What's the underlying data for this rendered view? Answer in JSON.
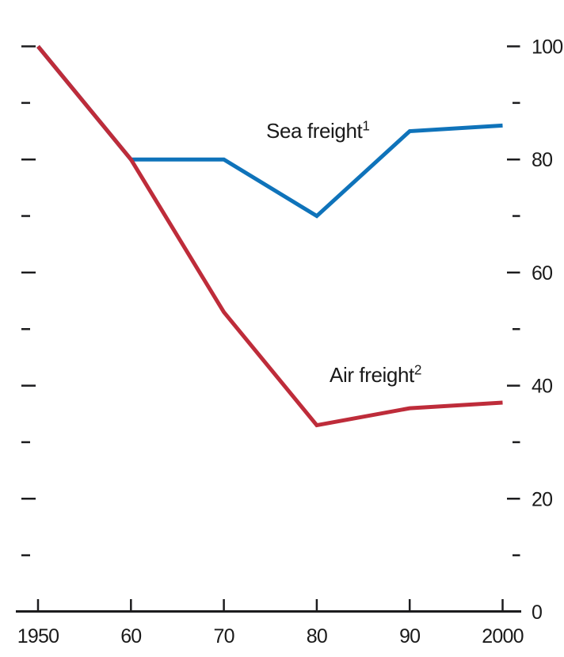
{
  "chart_data": {
    "type": "line",
    "x": [
      1950,
      1960,
      1970,
      1980,
      1990,
      2000
    ],
    "x_tick_labels": [
      "1950",
      "60",
      "70",
      "80",
      "90",
      "2000"
    ],
    "y_axis": {
      "side": "right",
      "min": 0,
      "max": 100,
      "major_step": 20,
      "minor_step": 10,
      "tick_labels": [
        "0",
        "20",
        "40",
        "60",
        "80",
        "100"
      ],
      "minor_ticks_both_sides": true
    },
    "series": [
      {
        "name": "Sea freight",
        "footnote_mark": "1",
        "color": "#0f73ba",
        "values": [
          100,
          80,
          80,
          70,
          85,
          86
        ]
      },
      {
        "name": "Air freight",
        "footnote_mark": "2",
        "color": "#be2c3a",
        "values": [
          100,
          80,
          53,
          33,
          36,
          37
        ]
      }
    ],
    "xlim": [
      1950,
      2000
    ],
    "ylim": [
      0,
      100
    ],
    "grid": false,
    "legend_position": "inline-labels"
  },
  "colors": {
    "sea_freight_line": "#0f73ba",
    "air_freight_line": "#be2c3a",
    "axis_and_text": "#1a1a1a"
  }
}
